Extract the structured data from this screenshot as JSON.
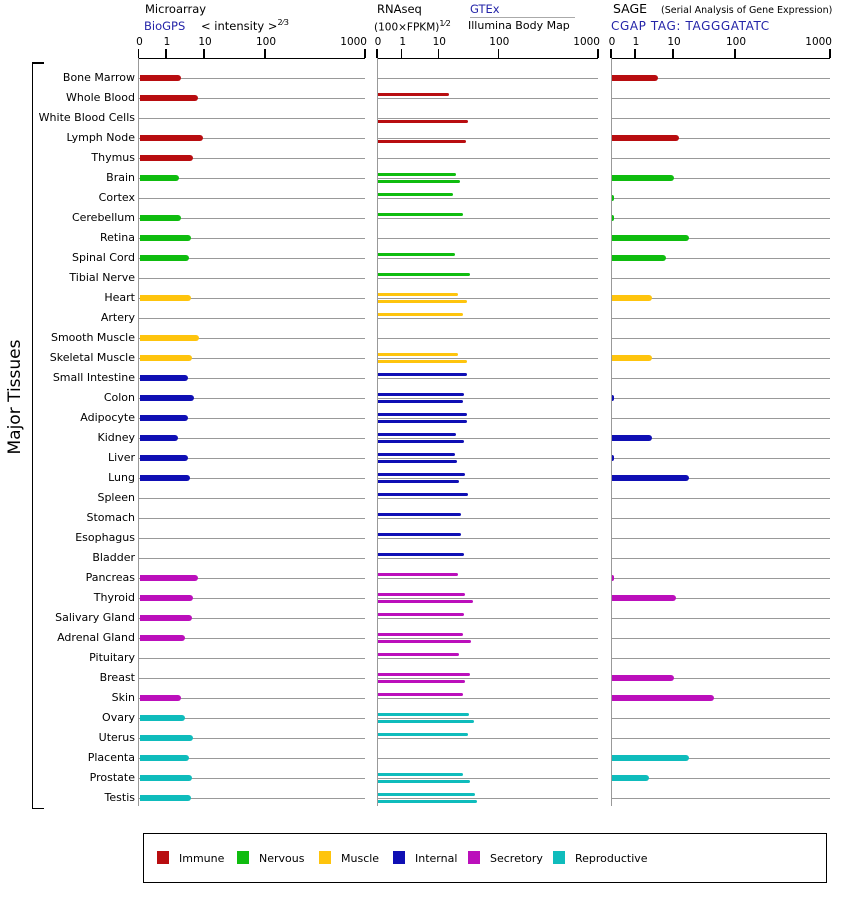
{
  "y_axis_title": "Major Tissues",
  "link_color": "#2424a8",
  "panels": [
    {
      "id": "microarray",
      "title": "Microarray",
      "source": "BioGPS",
      "measure": "< intensity >",
      "measure_exp": "2⁄3",
      "ticks": [
        "0",
        "1",
        "10",
        "100",
        "1000"
      ]
    },
    {
      "id": "rnaseq",
      "title": "RNAseq",
      "measure": "(100×FPKM)",
      "measure_exp": "1⁄2",
      "source_top": "GTEx",
      "source_bottom": "Illumina Body Map",
      "ticks": [
        "0",
        "1",
        "10",
        "100",
        "1000"
      ]
    },
    {
      "id": "sage",
      "title": "SAGE",
      "title_note": "(Serial Analysis of Gene Expression)",
      "source": "CGAP TAG: TAGGGATATC",
      "ticks": [
        "0",
        "1",
        "10",
        "100",
        "1000"
      ]
    }
  ],
  "legend": [
    {
      "label": "Immune",
      "color": "#b80d10"
    },
    {
      "label": "Nervous",
      "color": "#0fbc0f"
    },
    {
      "label": "Muscle",
      "color": "#fec40d"
    },
    {
      "label": "Internal",
      "color": "#0f0fb4"
    },
    {
      "label": "Secretory",
      "color": "#bb0fbb"
    },
    {
      "label": "Reproductive",
      "color": "#0fbcbc"
    }
  ],
  "group_colors": {
    "Immune": "#b80d10",
    "Nervous": "#0fbc0f",
    "Muscle": "#fec40d",
    "Internal": "#0f0fb4",
    "Secretory": "#bb0fbb",
    "Reproductive": "#0fbcbc"
  },
  "chart_data": {
    "type": "bar",
    "title": "Gene expression across major tissues (Microarray / RNAseq / SAGE)",
    "x_scale_ticks": [
      0,
      1,
      10,
      100,
      1000
    ],
    "series_names": [
      "microarray",
      "rnaseq_gtex",
      "rnaseq_illumina",
      "sage"
    ],
    "rows": [
      {
        "tissue": "Bone Marrow",
        "group": "Immune",
        "microarray": 2.3,
        "rnaseq_gtex": null,
        "rnaseq_illumina": null,
        "sage": 3.9
      },
      {
        "tissue": "Whole Blood",
        "group": "Immune",
        "microarray": 6.5,
        "rnaseq_gtex": 14.5,
        "rnaseq_illumina": null,
        "sage": null
      },
      {
        "tissue": "White Blood Cells",
        "group": "Immune",
        "microarray": null,
        "rnaseq_gtex": null,
        "rnaseq_illumina": 30,
        "sage": null
      },
      {
        "tissue": "Lymph Node",
        "group": "Immune",
        "microarray": 8.9,
        "rnaseq_gtex": null,
        "rnaseq_illumina": 28,
        "sage": 12.2
      },
      {
        "tissue": "Thymus",
        "group": "Immune",
        "microarray": 4.8,
        "rnaseq_gtex": null,
        "rnaseq_illumina": null,
        "sage": null
      },
      {
        "tissue": "Brain",
        "group": "Nervous",
        "microarray": 2.1,
        "rnaseq_gtex": 19.2,
        "rnaseq_illumina": 22.1,
        "sage": 10
      },
      {
        "tissue": "Cortex",
        "group": "Nervous",
        "microarray": null,
        "rnaseq_gtex": 16.9,
        "rnaseq_illumina": null,
        "sage": 0.1
      },
      {
        "tissue": "Cerebellum",
        "group": "Nervous",
        "microarray": 2.3,
        "rnaseq_gtex": 24.5,
        "rnaseq_illumina": null,
        "sage": 0.1
      },
      {
        "tissue": "Retina",
        "group": "Nervous",
        "microarray": 4.3,
        "rnaseq_gtex": null,
        "rnaseq_illumina": null,
        "sage": 17.7
      },
      {
        "tissue": "Spinal Cord",
        "group": "Nervous",
        "microarray": 3.8,
        "rnaseq_gtex": 18.5,
        "rnaseq_illumina": null,
        "sage": 6.3
      },
      {
        "tissue": "Tibial Nerve",
        "group": "Nervous",
        "microarray": null,
        "rnaseq_gtex": 32.1,
        "rnaseq_illumina": null,
        "sage": null
      },
      {
        "tissue": "Heart",
        "group": "Muscle",
        "microarray": 4.3,
        "rnaseq_gtex": 20.4,
        "rnaseq_illumina": 28.6,
        "sage": 2.6
      },
      {
        "tissue": "Artery",
        "group": "Muscle",
        "microarray": null,
        "rnaseq_gtex": 24.5,
        "rnaseq_illumina": null,
        "sage": null
      },
      {
        "tissue": "Smooth Muscle",
        "group": "Muscle",
        "microarray": 6.8,
        "rnaseq_gtex": null,
        "rnaseq_illumina": null,
        "sage": null
      },
      {
        "tissue": "Skeletal Muscle",
        "group": "Muscle",
        "microarray": 4.6,
        "rnaseq_gtex": 20.4,
        "rnaseq_illumina": 28.6,
        "sage": 2.6
      },
      {
        "tissue": "Small Intestine",
        "group": "Internal",
        "microarray": 3.6,
        "rnaseq_gtex": 28.6,
        "rnaseq_illumina": null,
        "sage": null
      },
      {
        "tissue": "Colon",
        "group": "Internal",
        "microarray": 5.1,
        "rnaseq_gtex": 25.8,
        "rnaseq_illumina": 25.1,
        "sage": 0.1
      },
      {
        "tissue": "Adipocyte",
        "group": "Internal",
        "microarray": 3.5,
        "rnaseq_gtex": 28.6,
        "rnaseq_illumina": 28.6,
        "sage": null
      },
      {
        "tissue": "Kidney",
        "group": "Internal",
        "microarray": 1.9,
        "rnaseq_gtex": 19,
        "rnaseq_illumina": 25.8,
        "sage": 2.7
      },
      {
        "tissue": "Liver",
        "group": "Internal",
        "microarray": 3.6,
        "rnaseq_gtex": 18.2,
        "rnaseq_illumina": 19.9,
        "sage": 0.1
      },
      {
        "tissue": "Lung",
        "group": "Internal",
        "microarray": 4.0,
        "rnaseq_gtex": 27.2,
        "rnaseq_illumina": 21.2,
        "sage": 17.7
      },
      {
        "tissue": "Spleen",
        "group": "Internal",
        "microarray": null,
        "rnaseq_gtex": 30,
        "rnaseq_illumina": null,
        "sage": null
      },
      {
        "tissue": "Stomach",
        "group": "Internal",
        "microarray": null,
        "rnaseq_gtex": 22.9,
        "rnaseq_illumina": null,
        "sage": null
      },
      {
        "tissue": "Esophagus",
        "group": "Internal",
        "microarray": null,
        "rnaseq_gtex": 23.2,
        "rnaseq_illumina": null,
        "sage": null
      },
      {
        "tissue": "Bladder",
        "group": "Internal",
        "microarray": null,
        "rnaseq_gtex": 25.8,
        "rnaseq_illumina": null,
        "sage": null
      },
      {
        "tissue": "Pancreas",
        "group": "Secretory",
        "microarray": 6.7,
        "rnaseq_gtex": 20.4,
        "rnaseq_illumina": null,
        "sage": 0.1
      },
      {
        "tissue": "Thyroid",
        "group": "Secretory",
        "microarray": 4.7,
        "rnaseq_gtex": 26.9,
        "rnaseq_illumina": 36.4,
        "sage": 10.8
      },
      {
        "tissue": "Salivary Gland",
        "group": "Secretory",
        "microarray": 4.6,
        "rnaseq_gtex": 25.8,
        "rnaseq_illumina": null,
        "sage": null
      },
      {
        "tissue": "Adrenal Gland",
        "group": "Secretory",
        "microarray": 3.0,
        "rnaseq_gtex": 24.8,
        "rnaseq_illumina": 34.2,
        "sage": null
      },
      {
        "tissue": "Pituitary",
        "group": "Secretory",
        "microarray": null,
        "rnaseq_gtex": 21.2,
        "rnaseq_illumina": null,
        "sage": null
      },
      {
        "tissue": "Breast",
        "group": "Secretory",
        "microarray": null,
        "rnaseq_gtex": 32.4,
        "rnaseq_illumina": 26.9,
        "sage": 10
      },
      {
        "tissue": "Skin",
        "group": "Secretory",
        "microarray": 2.4,
        "rnaseq_gtex": 25.1,
        "rnaseq_illumina": null,
        "sage": 44.7
      },
      {
        "tissue": "Ovary",
        "group": "Reproductive",
        "microarray": 2.9,
        "rnaseq_gtex": 31.2,
        "rnaseq_illumina": 37.8,
        "sage": null
      },
      {
        "tissue": "Uterus",
        "group": "Reproductive",
        "microarray": 4.9,
        "rnaseq_gtex": 29.8,
        "rnaseq_illumina": null,
        "sage": null
      },
      {
        "tissue": "Placenta",
        "group": "Reproductive",
        "microarray": 3.9,
        "rnaseq_gtex": null,
        "rnaseq_illumina": null,
        "sage": 17.7
      },
      {
        "tissue": "Prostate",
        "group": "Reproductive",
        "microarray": 4.6,
        "rnaseq_gtex": 24.5,
        "rnaseq_illumina": 32.4,
        "sage": 2.2
      },
      {
        "tissue": "Testis",
        "group": "Reproductive",
        "microarray": 4.3,
        "rnaseq_gtex": 39.4,
        "rnaseq_illumina": 42.9,
        "sage": null
      }
    ]
  }
}
